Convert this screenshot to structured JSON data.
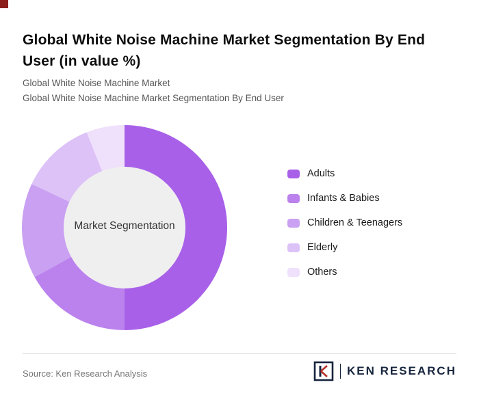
{
  "page": {
    "title": "Global White Noise Machine Market Segmentation By End User (in value %)",
    "subtitle1": "Global White Noise Machine Market",
    "subtitle2": "Global White Noise Machine Market Segmentation By End User",
    "source": "Source: Ken Research Analysis",
    "brand": "KEN RESEARCH"
  },
  "chart_data": {
    "type": "pie",
    "donut": true,
    "title": "Global White Noise Machine Market Segmentation By End User (in value %)",
    "center_label": "Market Segmentation",
    "start_angle_deg": -90,
    "direction": "clockwise",
    "legend_position": "right",
    "categories": [
      "Adults",
      "Infants & Babies",
      "Children & Teenagers",
      "Elderly",
      "Others"
    ],
    "values": [
      50,
      17,
      15,
      12,
      6
    ],
    "colors": [
      "#a860e8",
      "#bb82ee",
      "#c9a0f2",
      "#ddc2f8",
      "#efe0fc"
    ],
    "inner_radius_ratio": 0.59,
    "inner_color": "#efefef"
  }
}
